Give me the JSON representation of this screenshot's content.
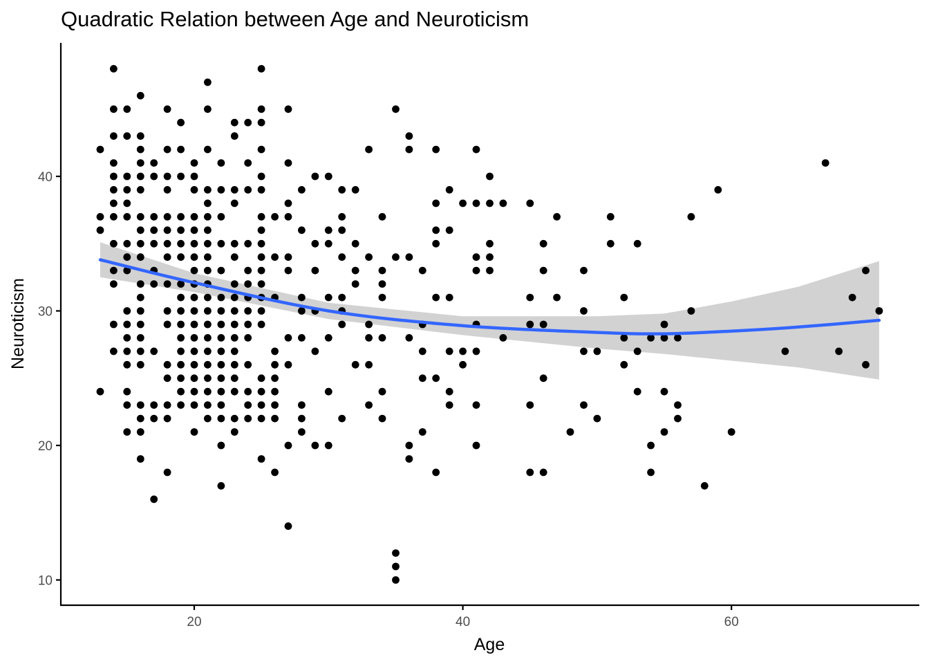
{
  "chart_data": {
    "type": "scatter",
    "title": "Quadratic Relation between Age and Neuroticism",
    "xlabel": "Age",
    "ylabel": "Neuroticism",
    "xlim": [
      10,
      72
    ],
    "ylim": [
      8.2,
      49.5
    ],
    "xticks": [
      20,
      40,
      60
    ],
    "yticks": [
      10,
      20,
      30,
      40
    ],
    "grid": false,
    "legend": "none",
    "colors": {
      "points": "#000000",
      "fit_line": "#3366ff",
      "ribbon": "#d0d0d0"
    },
    "fit": {
      "method": "quadratic",
      "x": [
        13,
        20,
        30,
        40,
        50,
        55,
        60,
        65,
        71
      ],
      "y": [
        33.8,
        32.1,
        30.0,
        28.9,
        28.4,
        28.3,
        28.5,
        28.8,
        29.3
      ],
      "lower": [
        32.5,
        31.4,
        29.4,
        28.2,
        27.2,
        26.8,
        26.3,
        25.8,
        24.9
      ],
      "upper": [
        35.1,
        32.8,
        30.6,
        29.6,
        29.6,
        29.8,
        30.7,
        31.8,
        33.7
      ]
    },
    "points": [
      [
        13,
        42
      ],
      [
        13,
        37
      ],
      [
        13,
        36
      ],
      [
        13,
        24
      ],
      [
        14,
        48
      ],
      [
        14,
        45
      ],
      [
        14,
        43
      ],
      [
        14,
        41
      ],
      [
        14,
        40
      ],
      [
        14,
        39
      ],
      [
        14,
        38
      ],
      [
        14,
        37
      ],
      [
        14,
        35
      ],
      [
        14,
        33
      ],
      [
        14,
        32
      ],
      [
        14,
        29
      ],
      [
        14,
        27
      ],
      [
        15,
        45
      ],
      [
        15,
        43
      ],
      [
        15,
        40
      ],
      [
        15,
        39
      ],
      [
        15,
        38
      ],
      [
        15,
        37
      ],
      [
        15,
        35
      ],
      [
        15,
        34
      ],
      [
        15,
        33
      ],
      [
        15,
        30
      ],
      [
        15,
        29
      ],
      [
        15,
        28
      ],
      [
        15,
        27
      ],
      [
        15,
        26
      ],
      [
        15,
        24
      ],
      [
        15,
        23
      ],
      [
        15,
        21
      ],
      [
        16,
        46
      ],
      [
        16,
        43
      ],
      [
        16,
        42
      ],
      [
        16,
        41
      ],
      [
        16,
        40
      ],
      [
        16,
        39
      ],
      [
        16,
        37
      ],
      [
        16,
        36
      ],
      [
        16,
        35
      ],
      [
        16,
        34
      ],
      [
        16,
        32
      ],
      [
        16,
        31
      ],
      [
        16,
        30
      ],
      [
        16,
        29
      ],
      [
        16,
        28
      ],
      [
        16,
        27
      ],
      [
        16,
        26
      ],
      [
        16,
        23
      ],
      [
        16,
        22
      ],
      [
        16,
        21
      ],
      [
        16,
        19
      ],
      [
        17,
        41
      ],
      [
        17,
        40
      ],
      [
        17,
        37
      ],
      [
        17,
        36
      ],
      [
        17,
        35
      ],
      [
        17,
        33
      ],
      [
        17,
        32
      ],
      [
        17,
        27
      ],
      [
        17,
        23
      ],
      [
        17,
        22
      ],
      [
        17,
        16
      ],
      [
        18,
        45
      ],
      [
        18,
        42
      ],
      [
        18,
        40
      ],
      [
        18,
        39
      ],
      [
        18,
        37
      ],
      [
        18,
        36
      ],
      [
        18,
        35
      ],
      [
        18,
        34
      ],
      [
        18,
        32
      ],
      [
        18,
        30
      ],
      [
        18,
        29
      ],
      [
        18,
        26
      ],
      [
        18,
        25
      ],
      [
        18,
        23
      ],
      [
        18,
        22
      ],
      [
        18,
        18
      ],
      [
        19,
        44
      ],
      [
        19,
        42
      ],
      [
        19,
        40
      ],
      [
        19,
        37
      ],
      [
        19,
        36
      ],
      [
        19,
        35
      ],
      [
        19,
        34
      ],
      [
        19,
        32
      ],
      [
        19,
        31
      ],
      [
        19,
        30
      ],
      [
        19,
        29
      ],
      [
        19,
        28
      ],
      [
        19,
        27
      ],
      [
        19,
        26
      ],
      [
        19,
        25
      ],
      [
        19,
        24
      ],
      [
        19,
        23
      ],
      [
        20,
        41
      ],
      [
        20,
        40
      ],
      [
        20,
        39
      ],
      [
        20,
        37
      ],
      [
        20,
        36
      ],
      [
        20,
        35
      ],
      [
        20,
        34
      ],
      [
        20,
        33
      ],
      [
        20,
        32
      ],
      [
        20,
        31
      ],
      [
        20,
        30
      ],
      [
        20,
        29
      ],
      [
        20,
        28
      ],
      [
        20,
        27
      ],
      [
        20,
        26
      ],
      [
        20,
        25
      ],
      [
        20,
        24
      ],
      [
        20,
        23
      ],
      [
        20,
        21
      ],
      [
        21,
        47
      ],
      [
        21,
        45
      ],
      [
        21,
        42
      ],
      [
        21,
        39
      ],
      [
        21,
        38
      ],
      [
        21,
        37
      ],
      [
        21,
        36
      ],
      [
        21,
        35
      ],
      [
        21,
        34
      ],
      [
        21,
        33
      ],
      [
        21,
        32
      ],
      [
        21,
        31
      ],
      [
        21,
        30
      ],
      [
        21,
        29
      ],
      [
        21,
        28
      ],
      [
        21,
        27
      ],
      [
        21,
        26
      ],
      [
        21,
        25
      ],
      [
        21,
        24
      ],
      [
        21,
        23
      ],
      [
        21,
        22
      ],
      [
        22,
        41
      ],
      [
        22,
        39
      ],
      [
        22,
        37
      ],
      [
        22,
        35
      ],
      [
        22,
        33
      ],
      [
        22,
        31
      ],
      [
        22,
        30
      ],
      [
        22,
        29
      ],
      [
        22,
        28
      ],
      [
        22,
        27
      ],
      [
        22,
        26
      ],
      [
        22,
        25
      ],
      [
        22,
        24
      ],
      [
        22,
        23
      ],
      [
        22,
        22
      ],
      [
        22,
        20
      ],
      [
        22,
        17
      ],
      [
        23,
        44
      ],
      [
        23,
        43
      ],
      [
        23,
        39
      ],
      [
        23,
        38
      ],
      [
        23,
        35
      ],
      [
        23,
        34
      ],
      [
        23,
        32
      ],
      [
        23,
        31
      ],
      [
        23,
        30
      ],
      [
        23,
        29
      ],
      [
        23,
        28
      ],
      [
        23,
        27
      ],
      [
        23,
        26
      ],
      [
        23,
        25
      ],
      [
        23,
        24
      ],
      [
        23,
        22
      ],
      [
        23,
        21
      ],
      [
        24,
        44
      ],
      [
        24,
        41
      ],
      [
        24,
        39
      ],
      [
        24,
        35
      ],
      [
        24,
        33
      ],
      [
        24,
        32
      ],
      [
        24,
        31
      ],
      [
        24,
        30
      ],
      [
        24,
        29
      ],
      [
        24,
        28
      ],
      [
        24,
        26
      ],
      [
        24,
        24
      ],
      [
        24,
        23
      ],
      [
        24,
        22
      ],
      [
        25,
        48
      ],
      [
        25,
        45
      ],
      [
        25,
        44
      ],
      [
        25,
        42
      ],
      [
        25,
        40
      ],
      [
        25,
        39
      ],
      [
        25,
        37
      ],
      [
        25,
        36
      ],
      [
        25,
        35
      ],
      [
        25,
        34
      ],
      [
        25,
        33
      ],
      [
        25,
        32
      ],
      [
        25,
        31
      ],
      [
        25,
        30
      ],
      [
        25,
        29
      ],
      [
        25,
        25
      ],
      [
        25,
        24
      ],
      [
        25,
        23
      ],
      [
        25,
        22
      ],
      [
        25,
        19
      ],
      [
        26,
        37
      ],
      [
        26,
        34
      ],
      [
        26,
        31
      ],
      [
        26,
        27
      ],
      [
        26,
        26
      ],
      [
        26,
        25
      ],
      [
        26,
        24
      ],
      [
        26,
        23
      ],
      [
        26,
        22
      ],
      [
        26,
        18
      ],
      [
        27,
        45
      ],
      [
        27,
        41
      ],
      [
        27,
        38
      ],
      [
        27,
        37
      ],
      [
        27,
        34
      ],
      [
        27,
        33
      ],
      [
        27,
        28
      ],
      [
        27,
        26
      ],
      [
        27,
        20
      ],
      [
        27,
        14
      ],
      [
        28,
        39
      ],
      [
        28,
        36
      ],
      [
        28,
        31
      ],
      [
        28,
        30
      ],
      [
        28,
        28
      ],
      [
        28,
        23
      ],
      [
        28,
        22
      ],
      [
        28,
        21
      ],
      [
        29,
        40
      ],
      [
        29,
        35
      ],
      [
        29,
        33
      ],
      [
        29,
        30
      ],
      [
        29,
        27
      ],
      [
        29,
        20
      ],
      [
        30,
        40
      ],
      [
        30,
        36
      ],
      [
        30,
        35
      ],
      [
        30,
        31
      ],
      [
        30,
        28
      ],
      [
        30,
        24
      ],
      [
        30,
        20
      ],
      [
        31,
        39
      ],
      [
        31,
        37
      ],
      [
        31,
        36
      ],
      [
        31,
        34
      ],
      [
        31,
        31
      ],
      [
        31,
        30
      ],
      [
        31,
        29
      ],
      [
        31,
        22
      ],
      [
        32,
        39
      ],
      [
        32,
        35
      ],
      [
        32,
        33
      ],
      [
        32,
        32
      ],
      [
        32,
        26
      ],
      [
        33,
        42
      ],
      [
        33,
        34
      ],
      [
        33,
        29
      ],
      [
        33,
        28
      ],
      [
        33,
        26
      ],
      [
        33,
        23
      ],
      [
        34,
        37
      ],
      [
        34,
        33
      ],
      [
        34,
        32
      ],
      [
        34,
        31
      ],
      [
        34,
        28
      ],
      [
        34,
        24
      ],
      [
        34,
        22
      ],
      [
        35,
        45
      ],
      [
        35,
        34
      ],
      [
        35,
        12
      ],
      [
        35,
        11
      ],
      [
        35,
        10
      ],
      [
        36,
        43
      ],
      [
        36,
        42
      ],
      [
        36,
        34
      ],
      [
        36,
        28
      ],
      [
        36,
        20
      ],
      [
        36,
        19
      ],
      [
        37,
        33
      ],
      [
        37,
        29
      ],
      [
        37,
        27
      ],
      [
        37,
        25
      ],
      [
        37,
        21
      ],
      [
        38,
        42
      ],
      [
        38,
        38
      ],
      [
        38,
        36
      ],
      [
        38,
        35
      ],
      [
        38,
        31
      ],
      [
        38,
        25
      ],
      [
        38,
        18
      ],
      [
        39,
        39
      ],
      [
        39,
        36
      ],
      [
        39,
        31
      ],
      [
        39,
        27
      ],
      [
        39,
        24
      ],
      [
        39,
        23
      ],
      [
        40,
        38
      ],
      [
        40,
        27
      ],
      [
        40,
        26
      ],
      [
        41,
        42
      ],
      [
        41,
        38
      ],
      [
        41,
        34
      ],
      [
        41,
        33
      ],
      [
        41,
        29
      ],
      [
        41,
        27
      ],
      [
        41,
        23
      ],
      [
        41,
        20
      ],
      [
        42,
        40
      ],
      [
        42,
        38
      ],
      [
        42,
        35
      ],
      [
        42,
        34
      ],
      [
        42,
        33
      ],
      [
        43,
        38
      ],
      [
        43,
        28
      ],
      [
        45,
        38
      ],
      [
        45,
        31
      ],
      [
        45,
        29
      ],
      [
        45,
        23
      ],
      [
        45,
        18
      ],
      [
        46,
        35
      ],
      [
        46,
        33
      ],
      [
        46,
        29
      ],
      [
        46,
        25
      ],
      [
        46,
        18
      ],
      [
        47,
        37
      ],
      [
        47,
        31
      ],
      [
        48,
        21
      ],
      [
        49,
        33
      ],
      [
        49,
        30
      ],
      [
        49,
        27
      ],
      [
        49,
        23
      ],
      [
        50,
        27
      ],
      [
        50,
        22
      ],
      [
        51,
        37
      ],
      [
        51,
        35
      ],
      [
        52,
        31
      ],
      [
        52,
        28
      ],
      [
        52,
        26
      ],
      [
        53,
        35
      ],
      [
        53,
        27
      ],
      [
        53,
        24
      ],
      [
        54,
        28
      ],
      [
        54,
        20
      ],
      [
        54,
        18
      ],
      [
        55,
        29
      ],
      [
        55,
        28
      ],
      [
        55,
        24
      ],
      [
        55,
        21
      ],
      [
        56,
        28
      ],
      [
        56,
        23
      ],
      [
        56,
        22
      ],
      [
        57,
        37
      ],
      [
        57,
        30
      ],
      [
        58,
        17
      ],
      [
        59,
        39
      ],
      [
        60,
        21
      ],
      [
        64,
        27
      ],
      [
        67,
        41
      ],
      [
        68,
        27
      ],
      [
        69,
        31
      ],
      [
        70,
        33
      ],
      [
        70,
        26
      ],
      [
        71,
        30
      ]
    ]
  }
}
